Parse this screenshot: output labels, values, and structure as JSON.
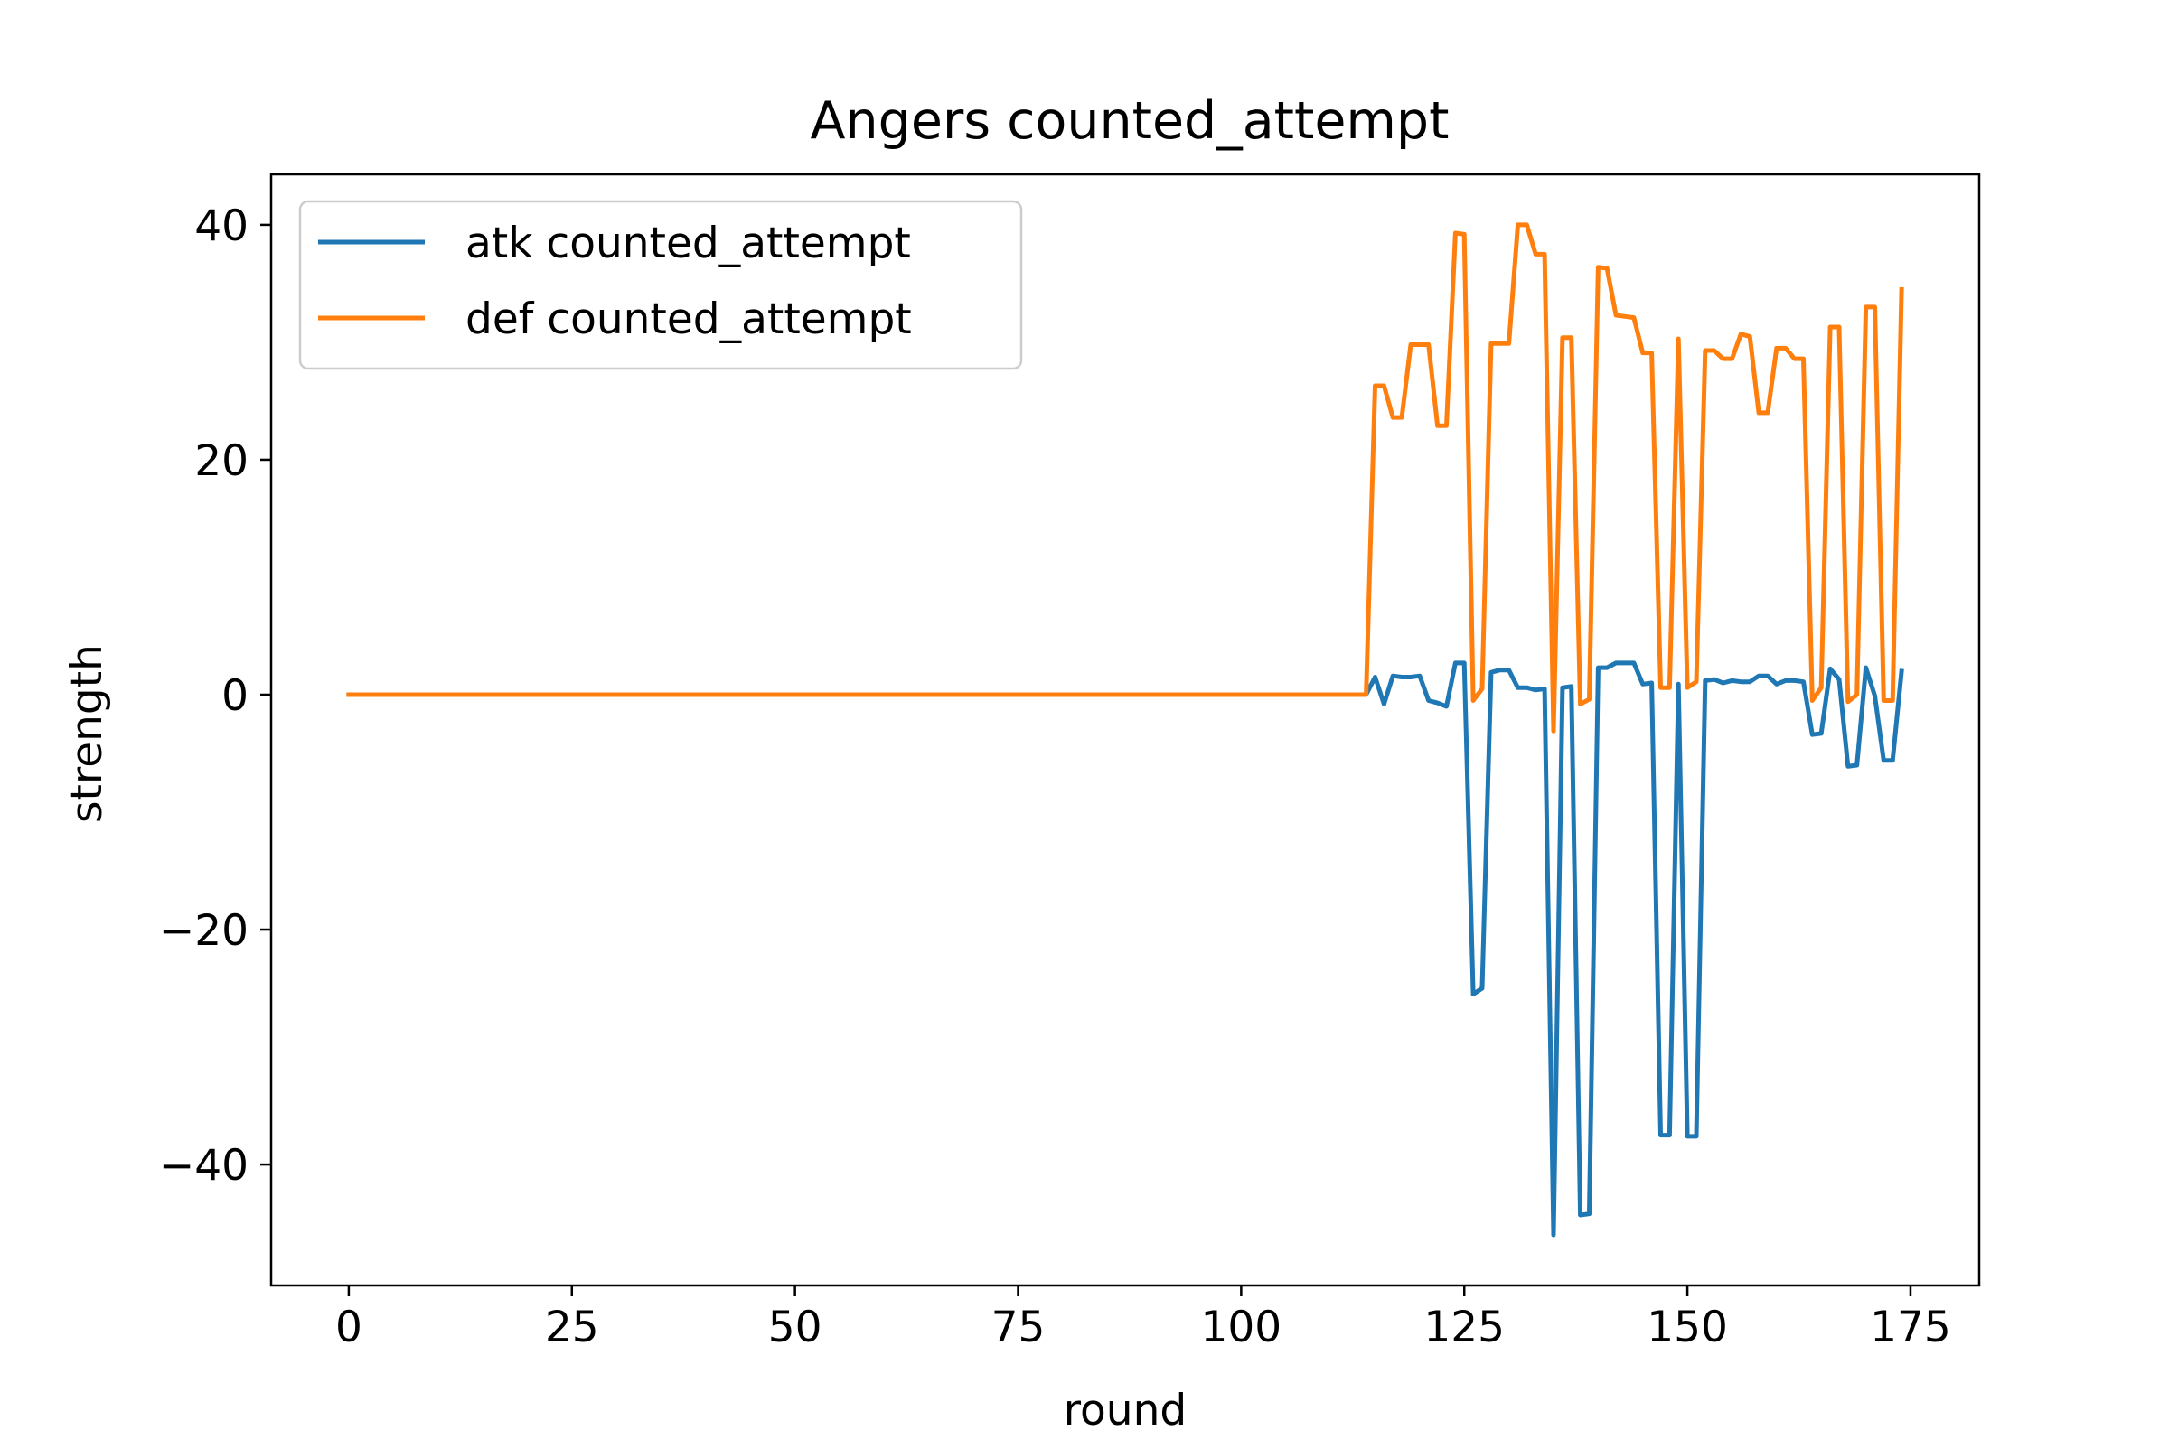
{
  "chart_data": {
    "type": "line",
    "title": "Angers counted_attempt",
    "xlabel": "round",
    "ylabel": "strength",
    "xlim": [
      -8.7,
      182.7
    ],
    "ylim": [
      -50.3,
      44.3
    ],
    "xticks": [
      0,
      25,
      50,
      75,
      100,
      125,
      150,
      175
    ],
    "xtick_labels": [
      "0",
      "25",
      "50",
      "75",
      "100",
      "125",
      "150",
      "175"
    ],
    "yticks": [
      -40,
      -20,
      0,
      20,
      40
    ],
    "ytick_labels": [
      "−40",
      "−20",
      "0",
      "20",
      "40"
    ],
    "grid": false,
    "legend_position": "top-left",
    "x": [
      0,
      114,
      115,
      116,
      117,
      118,
      119,
      120,
      121,
      122,
      123,
      124,
      125,
      126,
      127,
      128,
      129,
      130,
      131,
      132,
      133,
      134,
      135,
      136,
      137,
      138,
      139,
      140,
      141,
      142,
      143,
      144,
      145,
      146,
      147,
      148,
      149,
      150,
      151,
      152,
      153,
      154,
      155,
      156,
      157,
      158,
      159,
      160,
      161,
      162,
      163,
      164,
      165,
      166,
      167,
      168,
      169,
      170,
      171,
      172,
      173,
      174
    ],
    "series": [
      {
        "name": "atk counted_attempt",
        "color": "#1f77b4",
        "values": [
          0,
          0,
          1.5,
          -0.8,
          1.6,
          1.5,
          1.5,
          1.6,
          -0.5,
          -0.7,
          -1.0,
          2.7,
          2.7,
          -25.5,
          -25.0,
          1.9,
          2.1,
          2.1,
          0.6,
          0.6,
          0.4,
          0.5,
          -46.0,
          0.6,
          0.7,
          -44.3,
          -44.2,
          2.3,
          2.3,
          2.7,
          2.7,
          2.7,
          0.9,
          1.0,
          -37.5,
          -37.5,
          0.9,
          -37.6,
          -37.6,
          1.2,
          1.3,
          1.0,
          1.2,
          1.1,
          1.1,
          1.6,
          1.6,
          0.9,
          1.2,
          1.2,
          1.1,
          -3.4,
          -3.3,
          2.2,
          1.3,
          -6.1,
          -6.0,
          2.3,
          -0.1,
          -5.6,
          -5.6,
          2.0
        ]
      },
      {
        "name": "def counted_attempt",
        "color": "#ff7f0e",
        "values": [
          0,
          0,
          26.3,
          26.3,
          23.6,
          23.6,
          29.8,
          29.8,
          29.8,
          22.9,
          22.9,
          39.3,
          39.2,
          -0.5,
          0.5,
          29.9,
          29.9,
          29.9,
          40.0,
          40.0,
          37.5,
          37.5,
          -3.1,
          30.4,
          30.4,
          -0.8,
          -0.4,
          36.4,
          36.3,
          32.3,
          32.2,
          32.1,
          29.1,
          29.1,
          0.6,
          0.6,
          30.3,
          0.6,
          1.1,
          29.3,
          29.3,
          28.6,
          28.6,
          30.7,
          30.5,
          24.0,
          24.0,
          29.5,
          29.5,
          28.6,
          28.6,
          -0.5,
          0.6,
          31.3,
          31.3,
          -0.6,
          0.0,
          33.0,
          33.0,
          -0.5,
          -0.5,
          34.5
        ]
      }
    ]
  }
}
